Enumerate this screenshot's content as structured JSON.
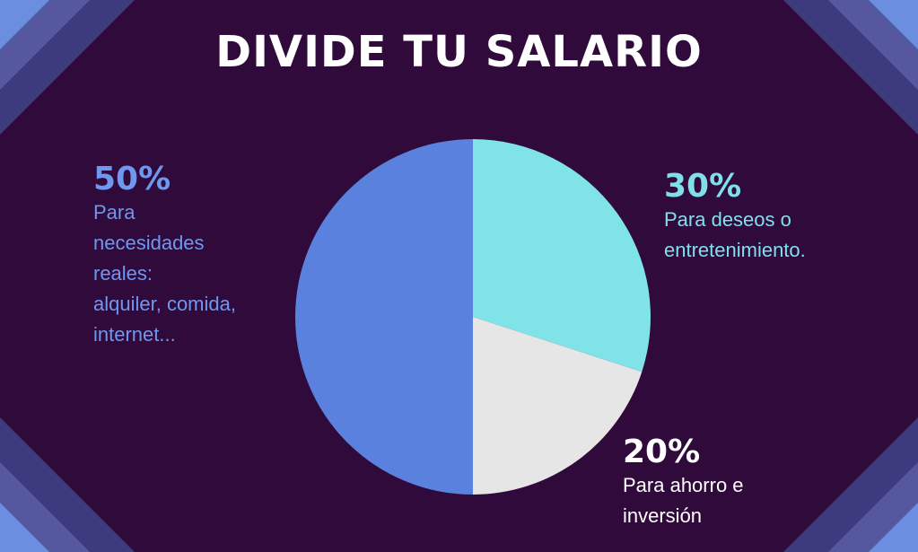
{
  "title": "DIVIDE TU SALARIO",
  "colors": {
    "background": "#300a3b",
    "stripe_dark": "#3e3a7e",
    "stripe_mid": "#55589f",
    "stripe_light": "#6b8ee0"
  },
  "chart_data": {
    "type": "pie",
    "title": "DIVIDE TU SALARIO",
    "categories": [
      "30%",
      "20%",
      "50%"
    ],
    "values": [
      30,
      20,
      50
    ],
    "colors": [
      "#7fe3e8",
      "#e6e6e6",
      "#5b81df"
    ],
    "labels": [
      {
        "percent": "50%",
        "description": "Para\nnecesidades\nreales:\nalquiler,  comida,\ninternet..."
      },
      {
        "percent": "30%",
        "description": "Para deseos o\nentretenimiento."
      },
      {
        "percent": "20%",
        "description": "Para ahorro e\ninversión"
      }
    ]
  }
}
